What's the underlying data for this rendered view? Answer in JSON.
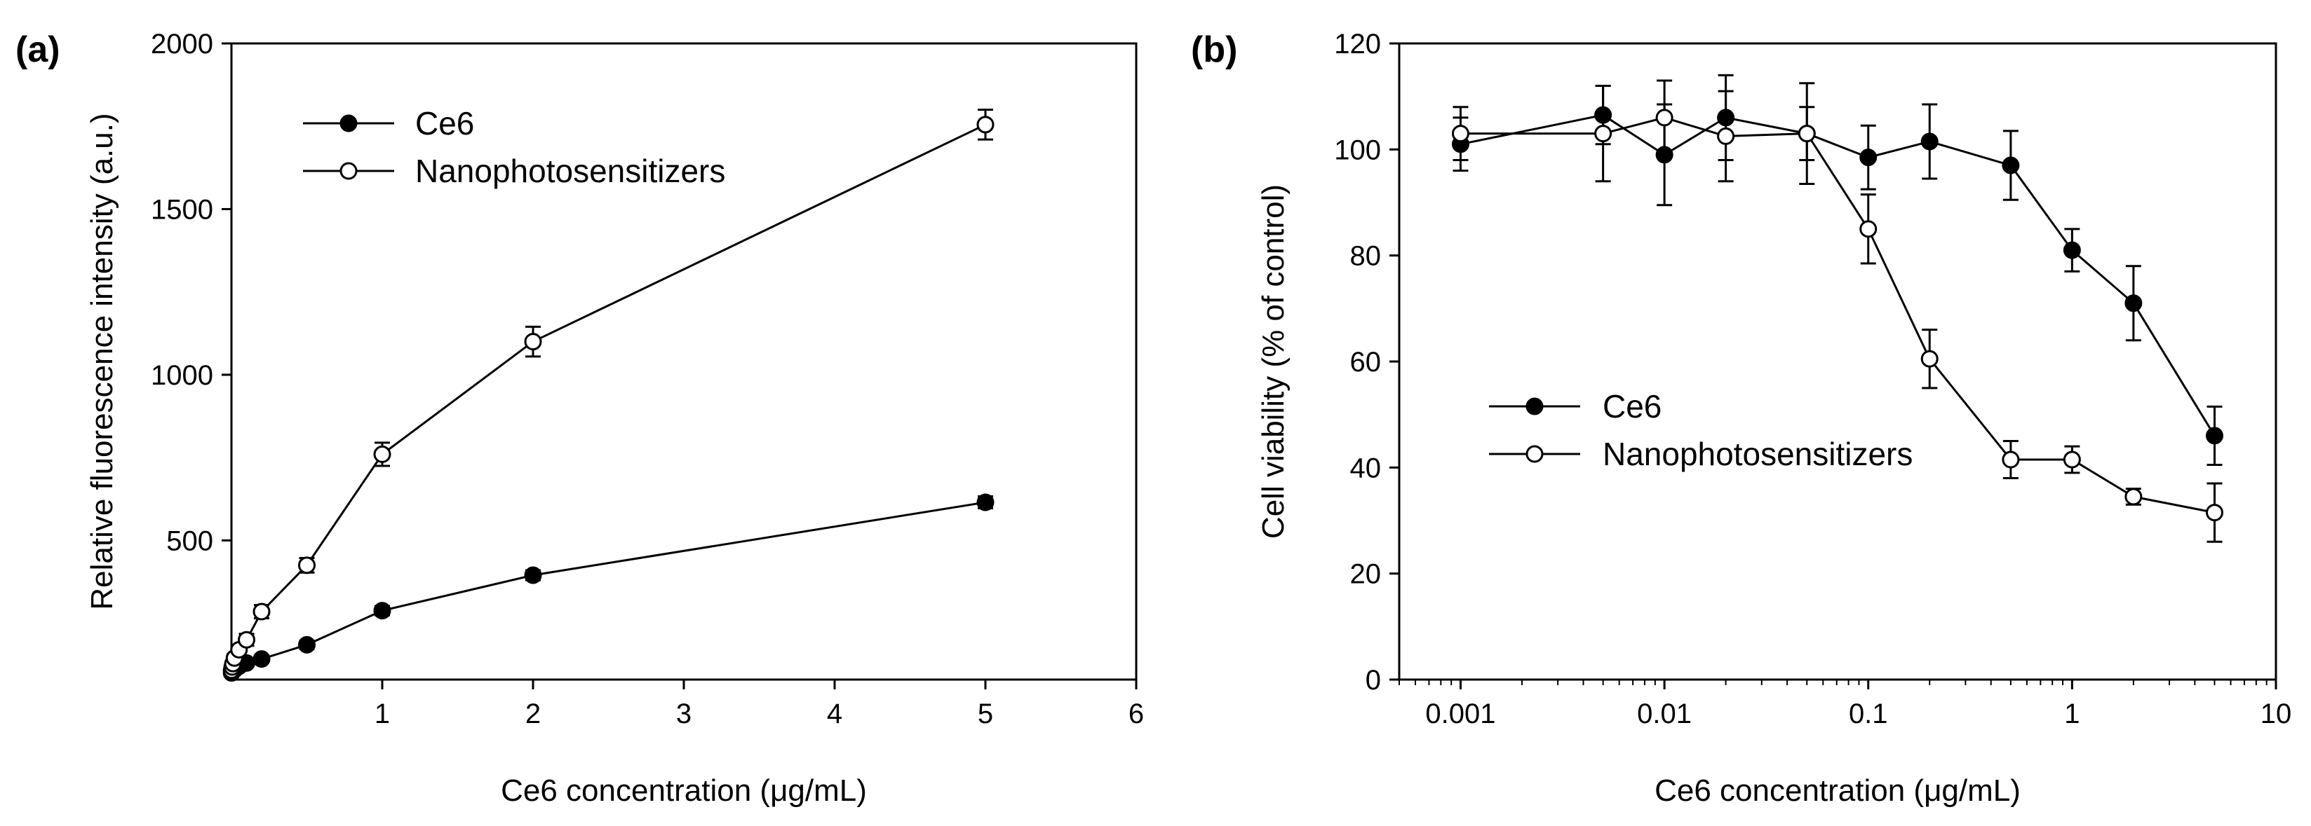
{
  "figure": {
    "panels": [
      {
        "panel_label": "(a)",
        "chart_data": {
          "type": "line",
          "title": "",
          "xlabel": "Ce6 concentration (μg/mL)",
          "ylabel": "Relative fluorescence intensity (a.u.)",
          "xscale": "linear",
          "xlim": [
            0,
            6
          ],
          "ylim": [
            80,
            2000
          ],
          "xticks": [
            1,
            2,
            3,
            4,
            5,
            6
          ],
          "xtick_labels": [
            "1",
            "2",
            "3",
            "4",
            "5",
            "6"
          ],
          "yticks": [
            500,
            1000,
            1500,
            2000
          ],
          "ytick_labels": [
            "500",
            "1000",
            "1500",
            "2000"
          ],
          "grid": false,
          "legend_position": "top-left",
          "series": [
            {
              "name": "Ce6",
              "marker": "filled-circle",
              "color": "#000000",
              "x": [
                0.001,
                0.005,
                0.01,
                0.02,
                0.05,
                0.1,
                0.2,
                0.5,
                1,
                2,
                5
              ],
              "y": [
                100,
                103,
                106,
                110,
                120,
                130,
                142,
                185,
                288,
                395,
                615
              ],
              "error": [
                8,
                8,
                8,
                8,
                8,
                8,
                10,
                12,
                14,
                15,
                18
              ]
            },
            {
              "name": "Nanophotosensitizers",
              "marker": "open-circle",
              "color": "#000000",
              "x": [
                0.001,
                0.005,
                0.01,
                0.02,
                0.05,
                0.1,
                0.2,
                0.5,
                1,
                2,
                5
              ],
              "y": [
                108,
                118,
                128,
                145,
                170,
                200,
                285,
                425,
                760,
                1100,
                1755
              ],
              "error": [
                10,
                10,
                10,
                12,
                14,
                18,
                20,
                22,
                35,
                45,
                45
              ]
            }
          ]
        }
      },
      {
        "panel_label": "(b)",
        "chart_data": {
          "type": "line",
          "title": "",
          "xlabel": "Ce6 concentration (μg/mL)",
          "ylabel": "Cell viability (% of control)",
          "xscale": "log",
          "xlim": [
            0.0005,
            10
          ],
          "ylim": [
            0,
            120
          ],
          "xticks": [
            0.001,
            0.01,
            0.1,
            1,
            10
          ],
          "xtick_labels": [
            "0.001",
            "0.01",
            "0.1",
            "1",
            "10"
          ],
          "yticks": [
            0,
            20,
            40,
            60,
            80,
            100,
            120
          ],
          "ytick_labels": [
            "0",
            "20",
            "40",
            "60",
            "80",
            "100",
            "120"
          ],
          "grid": false,
          "legend_position": "center-left",
          "series": [
            {
              "name": "Ce6",
              "marker": "filled-circle",
              "color": "#000000",
              "x": [
                0.001,
                0.005,
                0.01,
                0.02,
                0.05,
                0.1,
                0.2,
                0.5,
                1,
                2,
                5
              ],
              "y": [
                101,
                106.5,
                99,
                106,
                103,
                98.5,
                101.5,
                97,
                81,
                71,
                46
              ],
              "error": [
                5,
                5.5,
                9.5,
                8,
                5,
                6,
                7,
                6.5,
                4,
                7,
                5.5
              ]
            },
            {
              "name": "Nanophotosensitizers",
              "marker": "open-circle",
              "color": "#000000",
              "x": [
                0.001,
                0.005,
                0.01,
                0.02,
                0.05,
                0.1,
                0.2,
                0.5,
                1,
                2,
                5
              ],
              "y": [
                103,
                103,
                106,
                102.5,
                103,
                85,
                60.5,
                41.5,
                41.5,
                34.5,
                31.5
              ],
              "error": [
                5,
                9,
                7,
                8.5,
                9.5,
                6.5,
                5.5,
                3.5,
                2.5,
                1.5,
                5.5
              ]
            }
          ]
        }
      }
    ]
  }
}
